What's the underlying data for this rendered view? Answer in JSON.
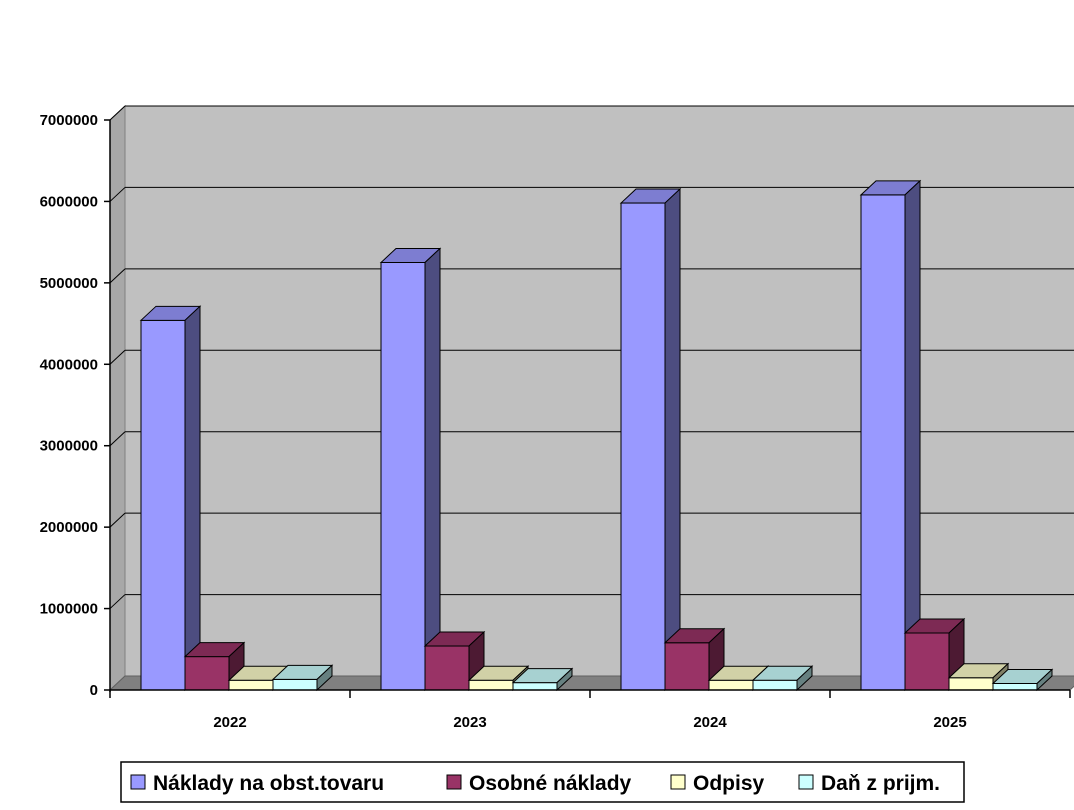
{
  "chart_data": {
    "type": "bar",
    "style": "3d-clustered-column",
    "categories": [
      "2022",
      "2023",
      "2024",
      "2025"
    ],
    "series": [
      {
        "name": "Náklady na obst.tovaru",
        "color": "#9999FF",
        "values": [
          4540000,
          5250000,
          5980000,
          6080000
        ]
      },
      {
        "name": "Osobné náklady",
        "color": "#993366",
        "values": [
          410000,
          540000,
          580000,
          700000
        ]
      },
      {
        "name": "Odpisy",
        "color": "#FFFFCC",
        "values": [
          120000,
          120000,
          120000,
          150000
        ]
      },
      {
        "name": "Daň z prijm.",
        "color": "#CCFFFF",
        "values": [
          130000,
          90000,
          120000,
          80000
        ]
      }
    ],
    "ylim": [
      0,
      7000000
    ],
    "yticks": [
      "0",
      "1000000",
      "2000000",
      "3000000",
      "4000000",
      "5000000",
      "6000000",
      "7000000"
    ],
    "grid": true,
    "legend_position": "bottom",
    "wall_color": "#C0C0C0",
    "floor_color": "#808080"
  }
}
